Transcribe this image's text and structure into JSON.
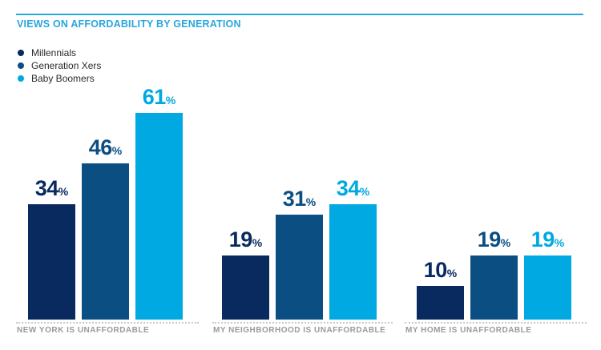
{
  "header": {
    "title": "VIEWS ON AFFORDABILITY BY GENERATION"
  },
  "colors": {
    "accent_blue": "#29a6de",
    "millennials": "#082a5e",
    "generation_xers": "#0b4e82",
    "baby_boomers": "#00a9e2",
    "category_label_gray": "#9a9a9a",
    "dotted_baseline_gray": "#c9c9c9",
    "legend_text": "#2b2b2b"
  },
  "chart_data": {
    "type": "bar",
    "title": "VIEWS ON AFFORDABILITY BY GENERATION",
    "categories": [
      "NEW YORK IS UNAFFORDABLE",
      "MY NEIGHBORHOOD IS UNAFFORDABLE",
      "MY HOME IS UNAFFORDABLE"
    ],
    "series": [
      {
        "name": "Millennials",
        "values": [
          34,
          19,
          10
        ],
        "color": "#082a5e"
      },
      {
        "name": "Generation Xers",
        "values": [
          46,
          31,
          19
        ],
        "color": "#0b4e82"
      },
      {
        "name": "Baby Boomers",
        "values": [
          61,
          34,
          19
        ],
        "color": "#00a9e2"
      }
    ],
    "value_suffix": "%",
    "value_labels_shown": true,
    "xlabel": "",
    "ylabel": "",
    "ylim": [
      0,
      65
    ],
    "grid": false,
    "axis_shown": false,
    "legend_position": "top-left"
  }
}
